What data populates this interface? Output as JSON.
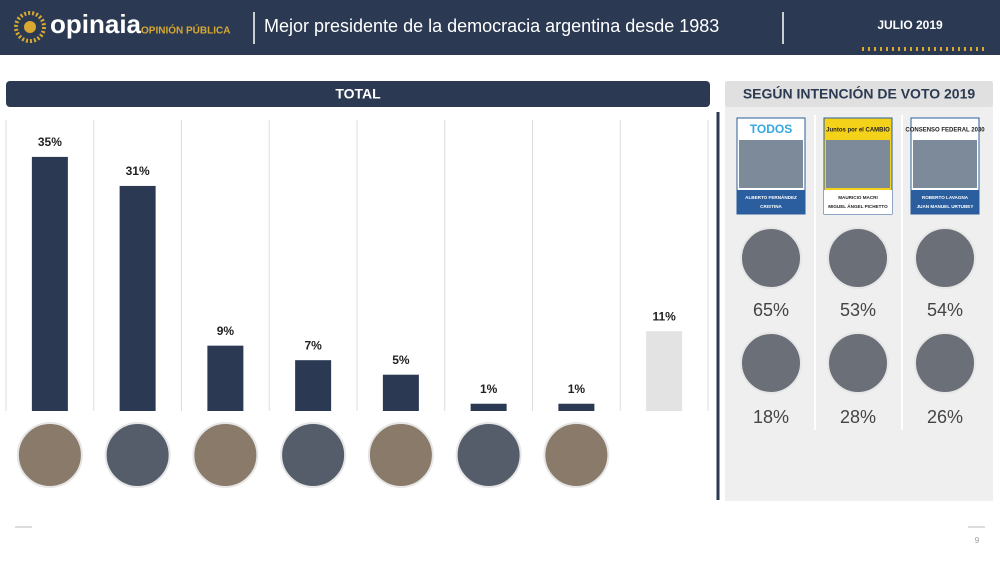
{
  "header": {
    "brand": "opinaia",
    "brand_sub": "OPINIÓN PÚBLICA",
    "title": "Mejor presidente de la democracia argentina desde 1983",
    "date": "JULIO 2019"
  },
  "chart_data": {
    "type": "bar",
    "title": "TOTAL",
    "categories": [
      null,
      null,
      null,
      null,
      null,
      null,
      null,
      null
    ],
    "values": [
      35,
      31,
      9,
      7,
      5,
      1,
      1,
      11
    ],
    "value_labels": [
      "35%",
      "31%",
      "9%",
      "7%",
      "5%",
      "1%",
      "1%",
      "11%"
    ],
    "colors": [
      "#2b3a52",
      "#2b3a52",
      "#2b3a52",
      "#2b3a52",
      "#2b3a52",
      "#2b3a52",
      "#2b3a52",
      "#e3e3e3"
    ]
  },
  "panel": {
    "title": "SEGÚN INTENCIÓN DE VOTO 2019",
    "columns": [
      {
        "party": "TODOS",
        "candidates": [
          "ALBERTO FERNÁNDEZ",
          "CRISTINA"
        ],
        "rows": [
          "65%",
          "18%"
        ]
      },
      {
        "party": "Juntos por el CAMBIO",
        "candidates": [
          "MAURICIO MACRI",
          "MIGUEL ÁNGEL PICHETTO"
        ],
        "rows": [
          "53%",
          "28%"
        ]
      },
      {
        "party": "CONSENSO FEDERAL 2030",
        "candidates": [
          "ROBERTO LAVAGNA",
          "JUAN MANUEL URTUBEY"
        ],
        "rows": [
          "54%",
          "26%"
        ]
      }
    ]
  },
  "footer": {
    "page": "9"
  }
}
